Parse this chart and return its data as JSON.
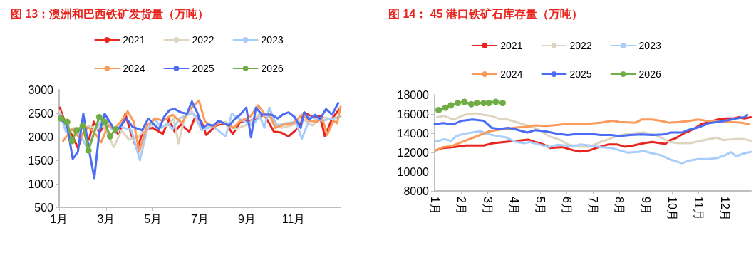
{
  "chart_data": [
    {
      "type": "line",
      "title": "图 13：澳洲和巴西铁矿发货量（万吨）",
      "xlim": [
        1,
        13
      ],
      "xticks": [
        {
          "value": 1,
          "label": "1月"
        },
        {
          "value": 3,
          "label": "3月"
        },
        {
          "value": 5,
          "label": "5月"
        },
        {
          "value": 7,
          "label": "7月"
        },
        {
          "value": 9,
          "label": "9月"
        },
        {
          "value": 11,
          "label": "11月"
        }
      ],
      "ylim": [
        500,
        3000
      ],
      "yticks": [
        500,
        1000,
        1500,
        2000,
        2500,
        3000
      ],
      "grid": false,
      "legend": "top",
      "marker": "none",
      "line_style": "solid",
      "series": [
        {
          "name": "2021",
          "color": "#e8261f",
          "x": [
            1.03,
            1.3,
            1.58,
            1.8,
            2.03,
            2.27,
            2.48,
            2.71,
            2.94,
            3.25,
            3.56,
            3.82,
            4.08,
            4.33,
            4.59,
            5.0,
            5.42,
            5.68,
            5.93,
            6.19,
            6.55,
            6.81,
            7.07,
            7.27,
            7.69,
            8.1,
            8.41,
            8.72,
            9.13,
            9.44,
            9.75,
            10.16,
            10.47,
            10.78,
            11.2,
            11.45,
            11.8,
            12.12,
            12.33,
            12.64,
            12.95
          ],
          "values": [
            2620,
            2240,
            2010,
            1760,
            2090,
            1940,
            2320,
            2090,
            2240,
            2190,
            2040,
            2490,
            2040,
            1730,
            2160,
            2190,
            2060,
            2370,
            2110,
            2260,
            2110,
            2440,
            2320,
            2040,
            2240,
            2290,
            2060,
            2320,
            2340,
            2390,
            2470,
            2110,
            2090,
            2010,
            2190,
            2520,
            2420,
            2440,
            2010,
            2390,
            2590
          ]
        },
        {
          "name": "2022",
          "color": "#ddd5c0",
          "x": [
            1.03,
            1.34,
            1.65,
            1.96,
            2.27,
            2.58,
            2.89,
            3.33,
            3.66,
            3.97,
            4.38,
            4.8,
            5.21,
            5.62,
            5.88,
            6.09,
            6.35,
            6.66,
            7.07,
            7.58,
            8.1,
            8.51,
            9.03,
            9.55,
            10.06,
            10.47,
            10.89,
            11.4,
            11.8,
            12.22,
            12.64,
            13.0
          ],
          "values": [
            2540,
            2090,
            2190,
            2010,
            2240,
            2160,
            2240,
            1780,
            2140,
            1940,
            1990,
            2290,
            2190,
            2240,
            2390,
            1860,
            2420,
            2540,
            2140,
            2260,
            2320,
            2160,
            2260,
            2490,
            2390,
            2190,
            2240,
            2370,
            2240,
            2420,
            2370,
            2440
          ]
        },
        {
          "name": "2023",
          "color": "#a9cdfa",
          "x": [
            1.03,
            1.3,
            1.55,
            1.91,
            2.22,
            2.53,
            2.84,
            3.25,
            3.66,
            4.08,
            4.44,
            4.75,
            5.06,
            5.37,
            5.62,
            5.83,
            6.14,
            6.45,
            6.76,
            7.07,
            7.58,
            8.1,
            8.36,
            8.72,
            9.24,
            9.55,
            9.75,
            9.96,
            10.27,
            10.68,
            11.09,
            11.35,
            11.71,
            12.22,
            12.64,
            13.0
          ],
          "values": [
            2490,
            2090,
            2160,
            2040,
            1730,
            2140,
            2370,
            2160,
            2210,
            2140,
            1500,
            2140,
            2390,
            2190,
            2290,
            2160,
            2390,
            2470,
            2490,
            2160,
            2210,
            2010,
            2490,
            2370,
            2240,
            2440,
            2190,
            2620,
            2240,
            2290,
            2320,
            1960,
            2420,
            2340,
            2390,
            2420
          ]
        },
        {
          "name": "2024",
          "color": "#fb9a5a",
          "x": [
            1.17,
            1.55,
            1.91,
            2.22,
            2.48,
            2.79,
            3.1,
            3.35,
            3.66,
            3.92,
            4.18,
            4.41,
            4.75,
            5.11,
            5.42,
            5.83,
            6.24,
            6.5,
            6.96,
            7.22,
            7.58,
            7.89,
            8.41,
            8.72,
            9.13,
            9.49,
            9.75,
            9.96,
            10.22,
            10.58,
            11.0,
            11.35,
            11.66,
            11.97,
            12.22,
            12.43,
            12.69,
            12.85,
            13.0
          ],
          "values": [
            1910,
            2160,
            1960,
            2210,
            2110,
            1880,
            2260,
            2160,
            2340,
            2540,
            2320,
            1680,
            2240,
            2390,
            2340,
            2470,
            2290,
            2540,
            2770,
            2320,
            2210,
            2320,
            2190,
            2340,
            2420,
            2670,
            2490,
            2490,
            2190,
            2260,
            2290,
            2470,
            2340,
            2320,
            2390,
            2040,
            2340,
            2290,
            2640
          ]
        },
        {
          "name": "2025",
          "color": "#4a6cf7",
          "x": [
            1.03,
            1.34,
            1.58,
            1.8,
            2.03,
            2.27,
            2.5,
            2.71,
            2.94,
            3.25,
            3.4,
            3.87,
            4.13,
            4.54,
            4.8,
            5.26,
            5.47,
            5.71,
            5.93,
            6.19,
            6.45,
            6.66,
            6.91,
            7.12,
            7.33,
            7.58,
            7.79,
            8.25,
            8.51,
            8.72,
            8.98,
            9.18,
            9.39,
            9.65,
            10.06,
            10.32,
            10.53,
            10.78,
            11.04,
            11.3,
            11.45,
            11.66,
            11.92,
            12.12,
            12.38,
            12.64,
            12.9
          ],
          "values": [
            2420,
            2240,
            1530,
            1680,
            2490,
            1730,
            1120,
            2090,
            2490,
            2240,
            2090,
            2390,
            2210,
            2140,
            2390,
            2160,
            2420,
            2570,
            2590,
            2520,
            2490,
            2750,
            2490,
            2190,
            2260,
            2240,
            2340,
            2240,
            2390,
            2470,
            2620,
            1990,
            2620,
            2470,
            2470,
            2390,
            2470,
            2520,
            2420,
            2190,
            2520,
            2370,
            2470,
            2370,
            2590,
            2470,
            2720
          ]
        },
        {
          "name": "2026",
          "color": "#70ad47",
          "marker": "circle",
          "x": [
            1.08,
            1.34,
            1.55,
            1.75,
            2.01,
            2.25,
            2.71,
            2.94,
            3.17,
            3.4
          ],
          "values": [
            2390,
            2320,
            1910,
            2140,
            2240,
            1710,
            2420,
            2320,
            2010,
            2160
          ]
        }
      ]
    },
    {
      "type": "line",
      "title": "图 14： 45 港口铁矿石库存量（万吨）",
      "xlim": [
        1,
        13
      ],
      "xticks": [
        {
          "value": 1,
          "label": "1月"
        },
        {
          "value": 2,
          "label": "2月"
        },
        {
          "value": 3,
          "label": "3月"
        },
        {
          "value": 4,
          "label": "4月"
        },
        {
          "value": 5,
          "label": "5月"
        },
        {
          "value": 6,
          "label": "6月"
        },
        {
          "value": 7,
          "label": "7月"
        },
        {
          "value": 8,
          "label": "8月"
        },
        {
          "value": 9,
          "label": "9月"
        },
        {
          "value": 10,
          "label": "10月"
        },
        {
          "value": 11,
          "label": "11月"
        },
        {
          "value": 12,
          "label": "12月"
        }
      ],
      "ylim": [
        8000,
        18000
      ],
      "yticks": [
        8000,
        10000,
        12000,
        14000,
        16000,
        18000
      ],
      "grid": false,
      "legend": "top",
      "marker": "none",
      "line_style": "solid",
      "series": [
        {
          "name": "2021",
          "color": "#e8261f",
          "x": [
            1.05,
            1.31,
            1.72,
            2.19,
            2.55,
            2.86,
            3.22,
            3.68,
            4.09,
            4.56,
            4.81,
            5.12,
            5.38,
            5.85,
            6.26,
            6.52,
            6.88,
            7.29,
            7.6,
            7.91,
            8.22,
            8.53,
            8.94,
            9.25,
            9.56,
            9.76,
            9.87,
            10.12,
            10.43,
            10.64,
            10.9,
            11.1,
            11.41,
            11.72,
            12.03,
            12.34,
            12.55,
            12.75,
            12.99
          ],
          "values": [
            12230,
            12470,
            12550,
            12720,
            12720,
            12720,
            12960,
            13090,
            13210,
            13330,
            13090,
            12840,
            12470,
            12550,
            12230,
            12100,
            12230,
            12600,
            12840,
            12840,
            12600,
            12720,
            12960,
            13090,
            12960,
            12890,
            13210,
            13450,
            13950,
            14190,
            14560,
            14930,
            15170,
            15420,
            15540,
            15540,
            15670,
            15540,
            15670
          ]
        },
        {
          "name": "2022",
          "color": "#ddd5c0",
          "x": [
            1.1,
            1.36,
            1.72,
            2.13,
            2.55,
            2.86,
            3.16,
            3.47,
            3.78,
            4.09,
            4.51,
            4.92,
            5.33,
            5.74,
            6.05,
            6.46,
            6.88,
            7.29,
            7.6,
            7.91,
            8.32,
            8.94,
            9.35,
            9.66,
            9.87,
            10.28,
            10.69,
            10.9,
            11.31,
            11.72,
            11.93,
            12.34,
            12.75,
            12.99
          ],
          "values": [
            15670,
            15790,
            15420,
            15910,
            16080,
            15910,
            15790,
            15490,
            15420,
            15170,
            14810,
            14440,
            13700,
            13330,
            12840,
            12600,
            12600,
            13090,
            13380,
            13700,
            13950,
            14070,
            13820,
            13450,
            13090,
            12960,
            12960,
            13090,
            13330,
            13530,
            13280,
            13380,
            13380,
            13210
          ]
        },
        {
          "name": "2023",
          "color": "#a9cdfa",
          "x": [
            1.05,
            1.36,
            1.62,
            1.82,
            2.13,
            2.55,
            2.75,
            2.96,
            3.27,
            3.68,
            4.09,
            4.4,
            4.61,
            5.02,
            5.33,
            5.64,
            5.95,
            6.26,
            6.52,
            6.88,
            7.29,
            7.7,
            8.01,
            8.32,
            8.73,
            8.94,
            9.25,
            9.56,
            9.97,
            10.38,
            10.69,
            11.0,
            11.41,
            11.72,
            12.03,
            12.24,
            12.44,
            12.75,
            12.99
          ],
          "values": [
            13130,
            13380,
            13210,
            13700,
            13950,
            14140,
            14190,
            13950,
            13770,
            13580,
            13090,
            12960,
            13090,
            12790,
            12550,
            12790,
            12720,
            12600,
            12840,
            12720,
            12550,
            12470,
            12230,
            11980,
            12050,
            12150,
            11910,
            11730,
            11240,
            10880,
            11170,
            11320,
            11320,
            11420,
            11730,
            12030,
            11610,
            11910,
            12050
          ]
        },
        {
          "name": "2024",
          "color": "#fb9a5a",
          "x": [
            1.05,
            1.31,
            1.62,
            2.03,
            2.55,
            3.06,
            3.47,
            3.99,
            4.51,
            4.81,
            5.23,
            5.64,
            6.05,
            6.46,
            6.88,
            7.29,
            7.75,
            8.01,
            8.63,
            8.84,
            9.25,
            9.56,
            9.87,
            10.28,
            10.69,
            11.0,
            11.41,
            11.82,
            12.24,
            12.65,
            12.91
          ],
          "values": [
            12230,
            12550,
            12640,
            13090,
            13630,
            14190,
            14360,
            14560,
            14680,
            14810,
            14760,
            14860,
            14980,
            14930,
            15000,
            15100,
            15300,
            15170,
            15100,
            15420,
            15420,
            15300,
            15100,
            15170,
            15300,
            15420,
            15250,
            15250,
            15170,
            15100,
            14930
          ]
        },
        {
          "name": "2025",
          "color": "#4a6cf7",
          "x": [
            1.0,
            1.31,
            1.72,
            2.03,
            2.44,
            2.86,
            3.01,
            3.16,
            3.47,
            3.78,
            4.09,
            4.51,
            4.81,
            5.23,
            5.64,
            6.05,
            6.46,
            6.88,
            7.29,
            7.7,
            8.01,
            8.42,
            8.84,
            9.25,
            9.66,
            9.97,
            10.38,
            10.59,
            11.0,
            11.41,
            11.72,
            12.03,
            12.44,
            12.75,
            12.86
          ],
          "values": [
            14930,
            15050,
            14930,
            15300,
            15420,
            15300,
            14930,
            14560,
            14440,
            14560,
            14390,
            14070,
            14310,
            14190,
            13950,
            13820,
            13950,
            13950,
            13820,
            13820,
            13700,
            13820,
            13870,
            13820,
            13870,
            14070,
            14070,
            14310,
            14610,
            15050,
            15170,
            15300,
            15540,
            15670,
            15910
          ]
        },
        {
          "name": "2026",
          "color": "#70ad47",
          "marker": "circle",
          "x": [
            1.15,
            1.41,
            1.62,
            1.88,
            2.13,
            2.39,
            2.6,
            2.86,
            3.06,
            3.32,
            3.58
          ],
          "values": [
            16400,
            16650,
            16900,
            17140,
            17260,
            17020,
            17140,
            17140,
            17140,
            17260,
            17140
          ]
        }
      ]
    }
  ]
}
